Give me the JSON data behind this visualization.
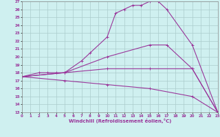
{
  "xlabel": "Windchill (Refroidissement éolien,°C)",
  "background_color": "#cff0f0",
  "grid_color": "#aacccc",
  "line_color": "#993399",
  "xlim": [
    0,
    23
  ],
  "ylim": [
    13,
    27
  ],
  "xticks": [
    0,
    1,
    2,
    3,
    4,
    5,
    6,
    7,
    8,
    9,
    10,
    11,
    12,
    13,
    14,
    15,
    16,
    17,
    18,
    19,
    20,
    21,
    22,
    23
  ],
  "yticks": [
    13,
    14,
    15,
    16,
    17,
    18,
    19,
    20,
    21,
    22,
    23,
    24,
    25,
    26,
    27
  ],
  "lines": [
    {
      "x": [
        0,
        2,
        3,
        4,
        5,
        7,
        8,
        10,
        11,
        12,
        13,
        14,
        15,
        16,
        17,
        20,
        23
      ],
      "y": [
        17.5,
        18,
        18,
        18,
        18,
        19.5,
        20.5,
        22.5,
        25.5,
        26,
        26.5,
        26.5,
        27,
        27,
        26,
        21.5,
        13
      ]
    },
    {
      "x": [
        0,
        5,
        10,
        15,
        17,
        20,
        23
      ],
      "y": [
        17.5,
        18,
        20,
        21.5,
        21.5,
        18.5,
        13
      ]
    },
    {
      "x": [
        0,
        5,
        10,
        15,
        20,
        23
      ],
      "y": [
        17.5,
        18,
        18.5,
        18.5,
        18.5,
        13
      ]
    },
    {
      "x": [
        0,
        5,
        10,
        15,
        20,
        23
      ],
      "y": [
        17.5,
        17,
        16.5,
        16,
        15,
        13
      ]
    }
  ]
}
